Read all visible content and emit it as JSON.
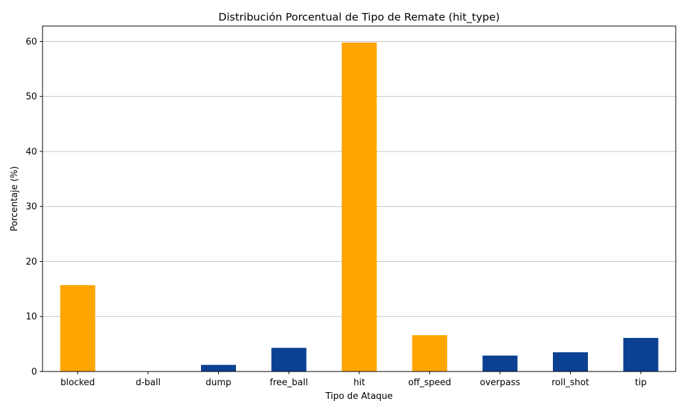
{
  "chart_data": {
    "type": "bar",
    "title": "Distribución Porcentual de Tipo de Remate (hit_type)",
    "xlabel": "Tipo de Ataque",
    "ylabel": "Porcentaje (%)",
    "categories": [
      "blocked",
      "d-ball",
      "dump",
      "free_ball",
      "hit",
      "off_speed",
      "overpass",
      "roll_shot",
      "tip"
    ],
    "values": [
      15.7,
      0.05,
      1.2,
      4.3,
      59.8,
      6.6,
      2.9,
      3.5,
      6.1
    ],
    "bar_colors": [
      "#FFA500",
      "#0A4192",
      "#0A4192",
      "#0A4192",
      "#FFA500",
      "#FFA500",
      "#0A4192",
      "#0A4192",
      "#0A4192"
    ],
    "ylim": [
      0,
      62.8
    ],
    "yticks": [
      0,
      10,
      20,
      30,
      40,
      50,
      60
    ],
    "grid": "y",
    "legend": "none"
  }
}
